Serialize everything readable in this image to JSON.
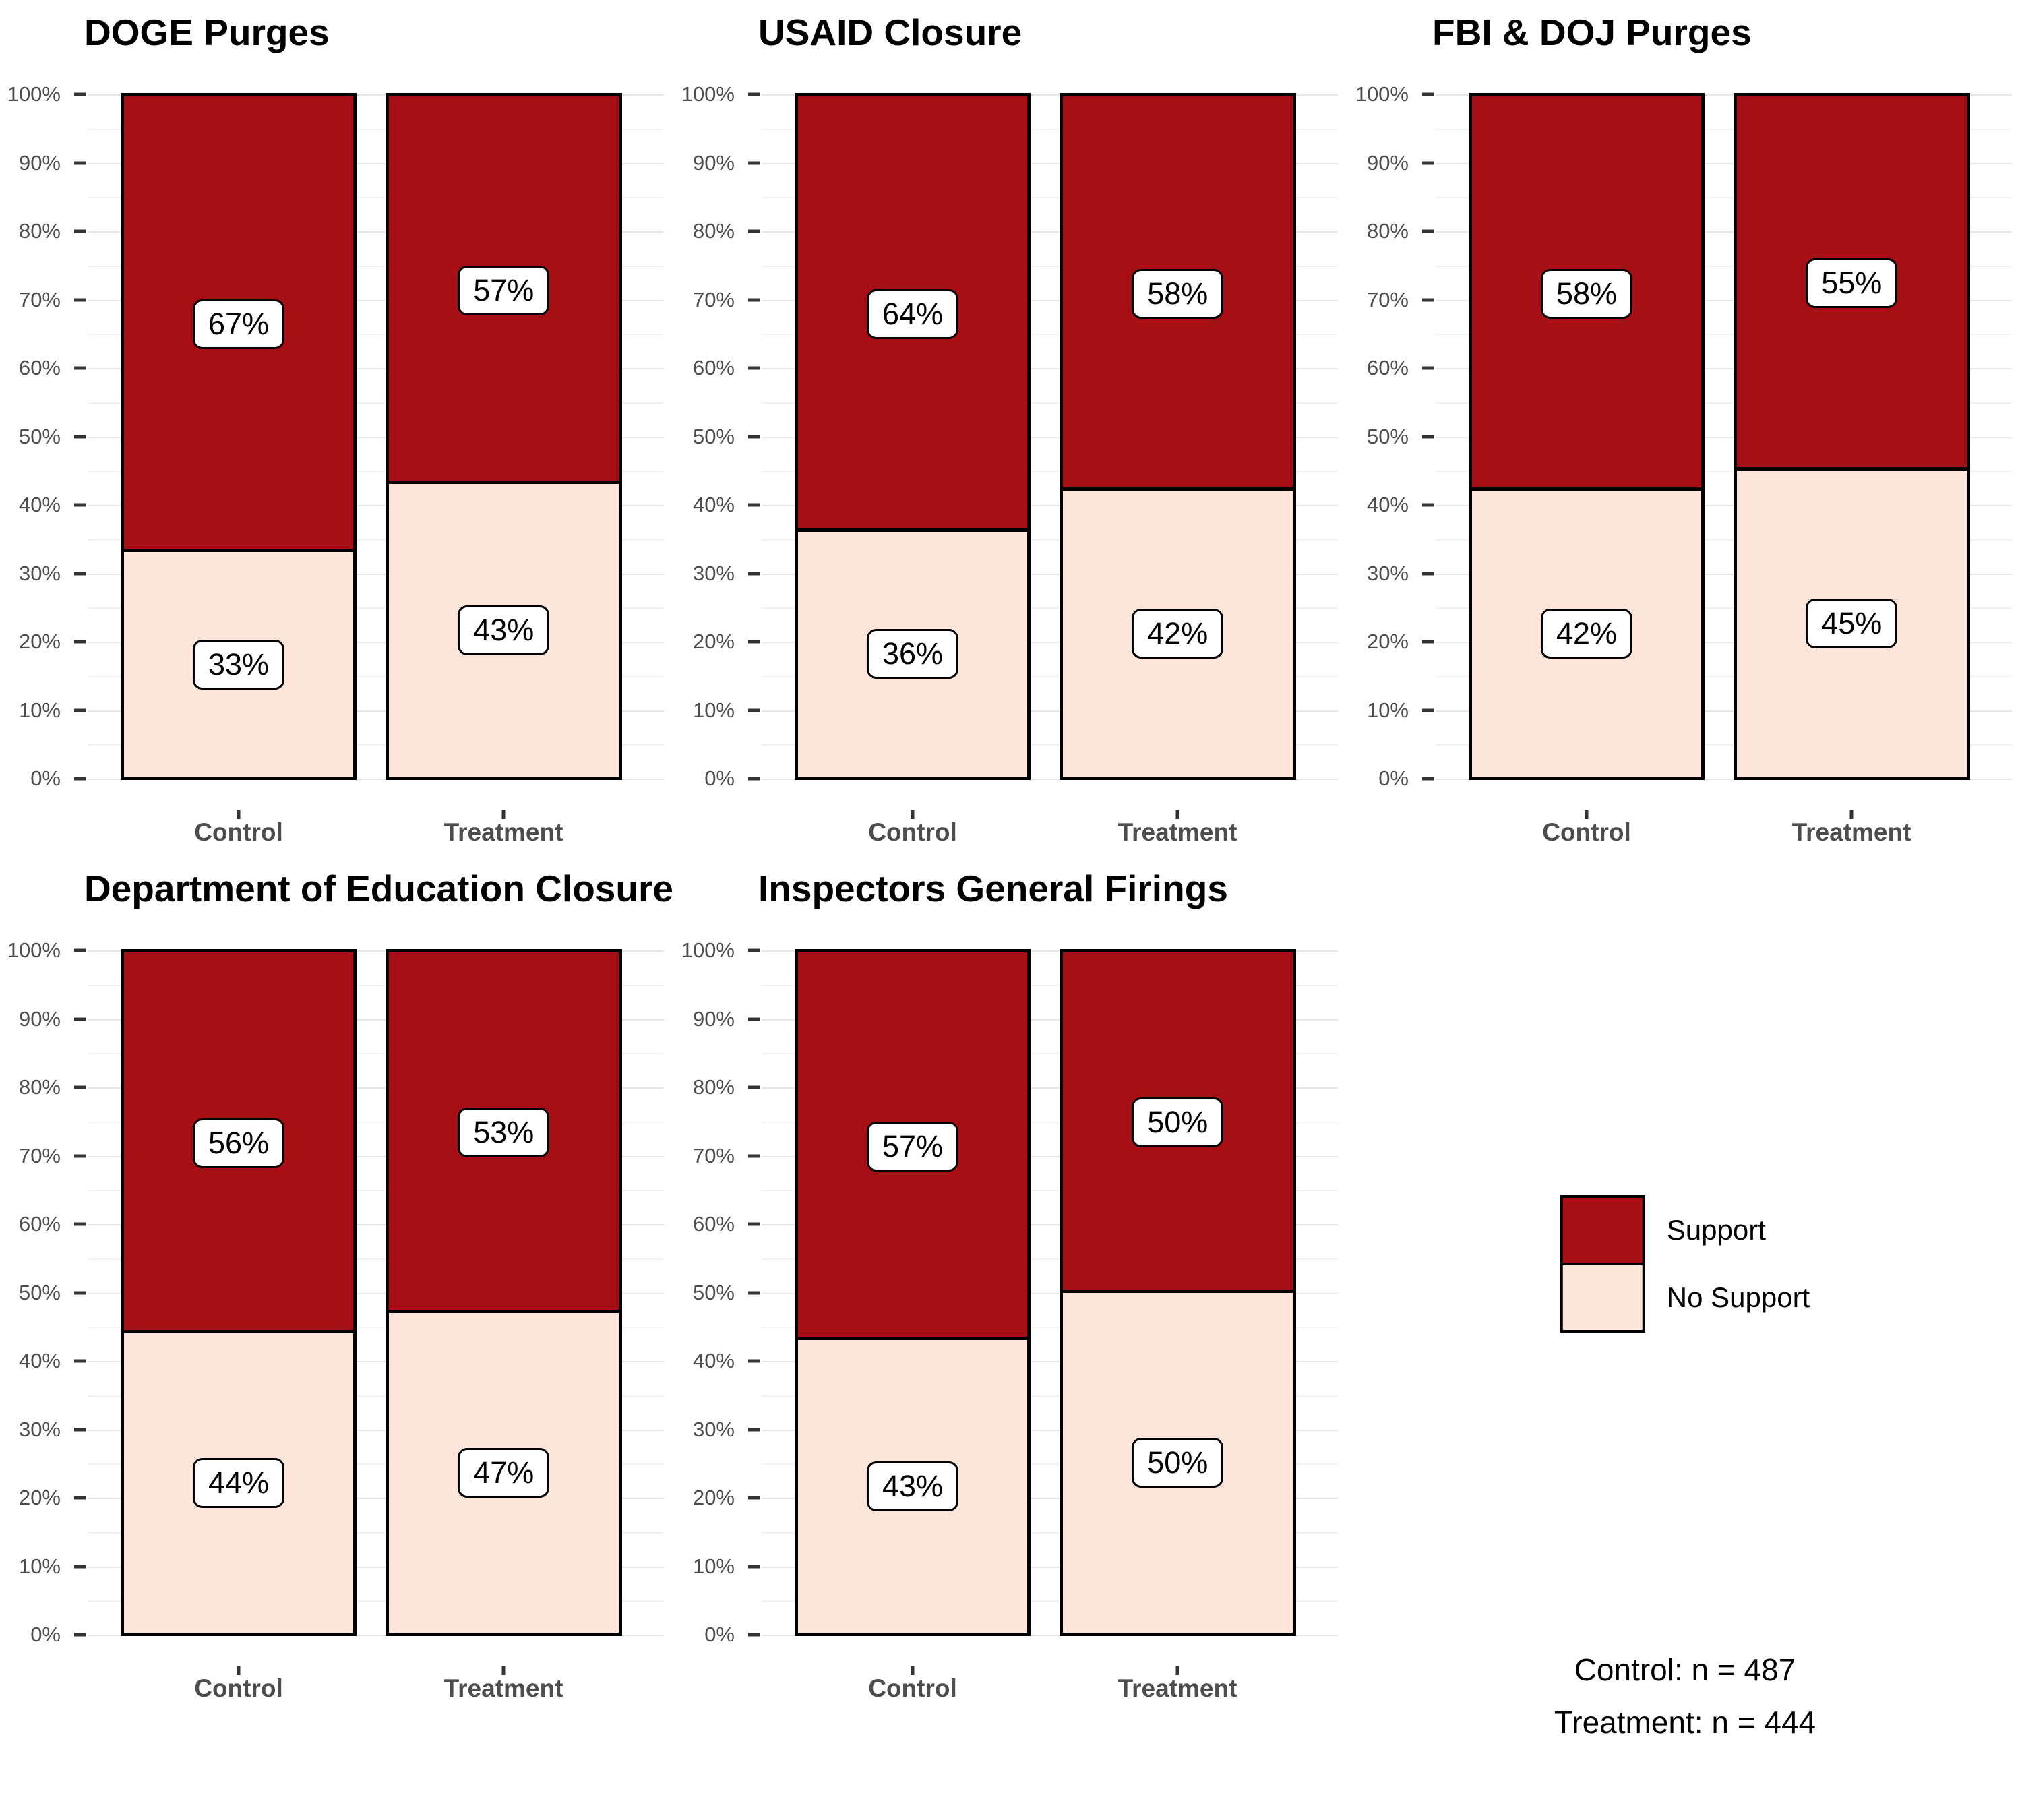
{
  "figure": {
    "background": "#FFFFFF"
  },
  "chart_data": {
    "type": "bar",
    "stacked": true,
    "orientation": "vertical",
    "value_unit": "%",
    "categories": [
      "Control",
      "Treatment"
    ],
    "series_labels": [
      "Support",
      "No Support"
    ],
    "y_axis": {
      "min": 0,
      "max": 100,
      "major_step": 10,
      "minor_step": 5,
      "tick_suffix": "%",
      "tick_labels": [
        "0%",
        "10%",
        "20%",
        "30%",
        "40%",
        "50%",
        "60%",
        "70%",
        "80%",
        "90%",
        "100%"
      ],
      "grid": "on"
    },
    "colors": {
      "support": "#A50F15",
      "no_support": "#FEE5D9",
      "bar_outline": "#000000",
      "grid_major": "#E6E6E6",
      "grid_minor": "#F2F2F2",
      "axis_text": "#4D4D4D"
    },
    "legend_position": "right-middle-of-empty-facet",
    "panels": [
      {
        "title": "DOGE Purges",
        "values": [
          {
            "category": "Control",
            "support": 67,
            "no_support": 33
          },
          {
            "category": "Treatment",
            "support": 57,
            "no_support": 43
          }
        ]
      },
      {
        "title": "USAID Closure",
        "values": [
          {
            "category": "Control",
            "support": 64,
            "no_support": 36
          },
          {
            "category": "Treatment",
            "support": 58,
            "no_support": 42
          }
        ]
      },
      {
        "title": "FBI & DOJ Purges",
        "values": [
          {
            "category": "Control",
            "support": 58,
            "no_support": 42
          },
          {
            "category": "Treatment",
            "support": 55,
            "no_support": 45
          }
        ]
      },
      {
        "title": "Department of Education Closure",
        "values": [
          {
            "category": "Control",
            "support": 56,
            "no_support": 44
          },
          {
            "category": "Treatment",
            "support": 53,
            "no_support": 47
          }
        ]
      },
      {
        "title": "Inspectors General Firings",
        "values": [
          {
            "category": "Control",
            "support": 57,
            "no_support": 43
          },
          {
            "category": "Treatment",
            "support": 50,
            "no_support": 50
          }
        ]
      }
    ]
  },
  "legend": {
    "items": [
      {
        "label": "Support",
        "color": "#A50F15"
      },
      {
        "label": "No Support",
        "color": "#FEE5D9"
      }
    ]
  },
  "footnote": {
    "line1": "Control: n = 487",
    "line2": "Treatment: n = 444"
  }
}
